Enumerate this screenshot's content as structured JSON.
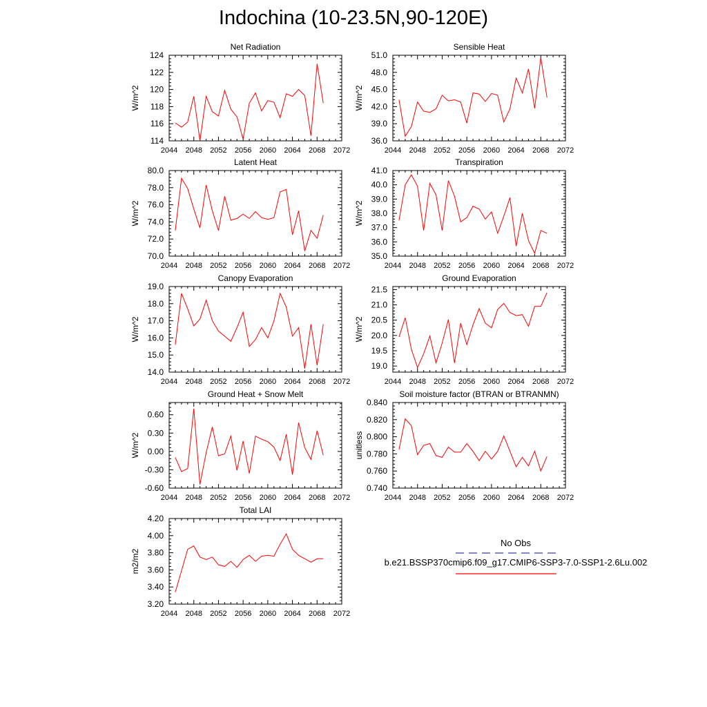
{
  "title": "Indochina (10-23.5N,90-120E)",
  "legend": {
    "obs_label": "No Obs",
    "obs_color": "#3c3ca0",
    "case_label": "b.e21.BSSP370cmip6.f09_g17.CMIP6-SSP3-7.0-SSP1-2.6Lu.002",
    "case_color": "#ff0000"
  },
  "chart_data": [
    {
      "type": "line",
      "title": "Net Radiation",
      "ylabel": "W/m^2",
      "xlim": [
        2044,
        2072
      ],
      "ylim": [
        114,
        124
      ],
      "xticks": [
        2044,
        2048,
        2052,
        2056,
        2060,
        2064,
        2068,
        2072
      ],
      "yticks": [
        114,
        116,
        118,
        120,
        122,
        124
      ],
      "ytick_decimals": 0,
      "color": "#ff0000",
      "x": [
        2045,
        2046,
        2047,
        2048,
        2049,
        2050,
        2051,
        2052,
        2053,
        2054,
        2055,
        2056,
        2057,
        2058,
        2059,
        2060,
        2061,
        2062,
        2063,
        2064,
        2065,
        2066,
        2067,
        2068,
        2069
      ],
      "values": [
        116.1,
        115.6,
        116.2,
        119.2,
        114.0,
        119.2,
        117.4,
        116.9,
        119.9,
        117.7,
        116.8,
        114.2,
        118.4,
        119.6,
        117.5,
        118.7,
        118.5,
        116.7,
        119.5,
        119.2,
        120.0,
        119.3,
        114.6,
        123.0,
        118.4
      ]
    },
    {
      "type": "line",
      "title": "Sensible Heat",
      "ylabel": "W/m^2",
      "xlim": [
        2044,
        2072
      ],
      "ylim": [
        36,
        51
      ],
      "xticks": [
        2044,
        2048,
        2052,
        2056,
        2060,
        2064,
        2068,
        2072
      ],
      "yticks": [
        36,
        39,
        42,
        45,
        48,
        51
      ],
      "ytick_decimals": 1,
      "color": "#ff0000",
      "x": [
        2045,
        2046,
        2047,
        2048,
        2049,
        2050,
        2051,
        2052,
        2053,
        2054,
        2055,
        2056,
        2057,
        2058,
        2059,
        2060,
        2061,
        2062,
        2063,
        2064,
        2065,
        2066,
        2067,
        2068,
        2069
      ],
      "values": [
        43.2,
        36.8,
        38.5,
        42.8,
        41.2,
        41.0,
        41.6,
        44.0,
        43.0,
        43.2,
        42.8,
        39.1,
        44.4,
        44.2,
        42.9,
        44.3,
        44.0,
        39.3,
        41.6,
        47.0,
        44.4,
        48.6,
        41.7,
        50.6,
        43.6
      ]
    },
    {
      "type": "line",
      "title": "Latent Heat",
      "ylabel": "W/m^2",
      "xlim": [
        2044,
        2072
      ],
      "ylim": [
        70,
        80
      ],
      "xticks": [
        2044,
        2048,
        2052,
        2056,
        2060,
        2064,
        2068,
        2072
      ],
      "yticks": [
        70,
        72,
        74,
        76,
        78,
        80
      ],
      "ytick_decimals": 1,
      "color": "#ff0000",
      "x": [
        2045,
        2046,
        2047,
        2048,
        2049,
        2050,
        2051,
        2052,
        2053,
        2054,
        2055,
        2056,
        2057,
        2058,
        2059,
        2060,
        2061,
        2062,
        2063,
        2064,
        2065,
        2066,
        2067,
        2068,
        2069
      ],
      "values": [
        73.0,
        79.1,
        77.9,
        75.5,
        73.3,
        78.3,
        75.3,
        73.0,
        77.0,
        74.2,
        74.4,
        74.9,
        74.4,
        75.2,
        74.5,
        74.3,
        74.5,
        77.5,
        77.8,
        72.5,
        75.3,
        70.6,
        73.0,
        72.1,
        74.8
      ]
    },
    {
      "type": "line",
      "title": "Transpiration",
      "ylabel": "W/m^2",
      "xlim": [
        2044,
        2072
      ],
      "ylim": [
        35,
        41
      ],
      "xticks": [
        2044,
        2048,
        2052,
        2056,
        2060,
        2064,
        2068,
        2072
      ],
      "yticks": [
        35,
        36,
        37,
        38,
        39,
        40,
        41
      ],
      "ytick_decimals": 1,
      "color": "#ff0000",
      "x": [
        2045,
        2046,
        2047,
        2048,
        2049,
        2050,
        2051,
        2052,
        2053,
        2054,
        2055,
        2056,
        2057,
        2058,
        2059,
        2060,
        2061,
        2062,
        2063,
        2064,
        2065,
        2066,
        2067,
        2068,
        2069
      ],
      "values": [
        37.5,
        40.0,
        40.7,
        39.9,
        36.8,
        40.1,
        39.3,
        36.8,
        40.3,
        39.2,
        37.4,
        37.7,
        38.5,
        38.3,
        37.6,
        38.1,
        36.6,
        37.8,
        39.1,
        35.7,
        38.0,
        36.1,
        35.2,
        36.8,
        36.6
      ]
    },
    {
      "type": "line",
      "title": "Canopy Evaporation",
      "ylabel": "W/m^2",
      "xlim": [
        2044,
        2072
      ],
      "ylim": [
        14,
        19
      ],
      "xticks": [
        2044,
        2048,
        2052,
        2056,
        2060,
        2064,
        2068,
        2072
      ],
      "yticks": [
        14,
        15,
        16,
        17,
        18,
        19
      ],
      "ytick_decimals": 1,
      "color": "#ff0000",
      "x": [
        2045,
        2046,
        2047,
        2048,
        2049,
        2050,
        2051,
        2052,
        2053,
        2054,
        2055,
        2056,
        2057,
        2058,
        2059,
        2060,
        2061,
        2062,
        2063,
        2064,
        2065,
        2066,
        2067,
        2068,
        2069
      ],
      "values": [
        15.6,
        18.6,
        17.7,
        16.7,
        17.1,
        18.2,
        17.0,
        16.4,
        16.1,
        15.8,
        16.6,
        17.5,
        15.5,
        15.9,
        16.6,
        16.0,
        17.0,
        18.6,
        17.8,
        16.1,
        16.6,
        14.2,
        16.8,
        14.4,
        16.8
      ]
    },
    {
      "type": "line",
      "title": "Ground Evaporation",
      "ylabel": "W/m^2",
      "xlim": [
        2044,
        2072
      ],
      "ylim": [
        18.8,
        21.6
      ],
      "xticks": [
        2044,
        2048,
        2052,
        2056,
        2060,
        2064,
        2068,
        2072
      ],
      "yticks": [
        19.0,
        19.5,
        20.0,
        20.5,
        21.0,
        21.5
      ],
      "ytick_decimals": 1,
      "color": "#ff0000",
      "x": [
        2045,
        2046,
        2047,
        2048,
        2049,
        2050,
        2051,
        2052,
        2053,
        2054,
        2055,
        2056,
        2057,
        2058,
        2059,
        2060,
        2061,
        2062,
        2063,
        2064,
        2065,
        2066,
        2067,
        2068,
        2069
      ],
      "values": [
        19.95,
        20.58,
        19.55,
        18.95,
        19.4,
        19.98,
        19.1,
        19.75,
        20.52,
        19.1,
        20.4,
        19.7,
        20.35,
        20.88,
        20.4,
        20.25,
        20.85,
        21.05,
        20.75,
        20.65,
        20.68,
        20.3,
        20.95,
        20.95,
        21.4
      ]
    },
    {
      "type": "line",
      "title": "Ground Heat + Snow Melt",
      "ylabel": "W/m^2",
      "xlim": [
        2044,
        2072
      ],
      "ylim": [
        -0.6,
        0.8
      ],
      "xticks": [
        2044,
        2048,
        2052,
        2056,
        2060,
        2064,
        2068,
        2072
      ],
      "yticks": [
        -0.6,
        -0.3,
        0.0,
        0.3,
        0.6
      ],
      "ytick_decimals": 2,
      "color": "#ff0000",
      "x": [
        2045,
        2046,
        2047,
        2048,
        2049,
        2050,
        2051,
        2052,
        2053,
        2054,
        2055,
        2056,
        2057,
        2058,
        2059,
        2060,
        2061,
        2062,
        2063,
        2064,
        2065,
        2066,
        2067,
        2068,
        2069
      ],
      "values": [
        -0.1,
        -0.33,
        -0.28,
        0.7,
        -0.54,
        -0.02,
        0.4,
        -0.07,
        -0.04,
        0.25,
        -0.31,
        0.17,
        -0.36,
        0.25,
        0.2,
        0.16,
        0.07,
        -0.15,
        0.28,
        -0.38,
        0.47,
        0.06,
        -0.13,
        0.34,
        -0.06
      ]
    },
    {
      "type": "line",
      "title": "Soil moisture factor (BTRAN or BTRANMN)",
      "ylabel": "unitless",
      "xlim": [
        2044,
        2072
      ],
      "ylim": [
        0.74,
        0.84
      ],
      "xticks": [
        2044,
        2048,
        2052,
        2056,
        2060,
        2064,
        2068,
        2072
      ],
      "yticks": [
        0.74,
        0.76,
        0.78,
        0.8,
        0.82,
        0.84
      ],
      "ytick_decimals": 3,
      "color": "#ff0000",
      "x": [
        2045,
        2046,
        2047,
        2048,
        2049,
        2050,
        2051,
        2052,
        2053,
        2054,
        2055,
        2056,
        2057,
        2058,
        2059,
        2060,
        2061,
        2062,
        2063,
        2064,
        2065,
        2066,
        2067,
        2068,
        2069
      ],
      "values": [
        0.785,
        0.821,
        0.813,
        0.779,
        0.79,
        0.792,
        0.778,
        0.776,
        0.788,
        0.782,
        0.782,
        0.792,
        0.783,
        0.772,
        0.783,
        0.774,
        0.783,
        0.801,
        0.783,
        0.765,
        0.776,
        0.766,
        0.783,
        0.76,
        0.777
      ]
    },
    {
      "type": "line",
      "title": "Total LAI",
      "ylabel": "m2/m2",
      "xlim": [
        2044,
        2072
      ],
      "ylim": [
        3.2,
        4.2
      ],
      "xticks": [
        2044,
        2048,
        2052,
        2056,
        2060,
        2064,
        2068,
        2072
      ],
      "yticks": [
        3.2,
        3.4,
        3.6,
        3.8,
        4.0,
        4.2
      ],
      "ytick_decimals": 2,
      "color": "#ff0000",
      "x": [
        2045,
        2046,
        2047,
        2048,
        2049,
        2050,
        2051,
        2052,
        2053,
        2054,
        2055,
        2056,
        2057,
        2058,
        2059,
        2060,
        2061,
        2062,
        2063,
        2064,
        2065,
        2066,
        2067,
        2068,
        2069
      ],
      "values": [
        3.34,
        3.59,
        3.84,
        3.88,
        3.75,
        3.72,
        3.75,
        3.66,
        3.64,
        3.7,
        3.63,
        3.72,
        3.77,
        3.7,
        3.76,
        3.77,
        3.76,
        3.9,
        4.02,
        3.84,
        3.77,
        3.73,
        3.69,
        3.73,
        3.73
      ]
    }
  ]
}
